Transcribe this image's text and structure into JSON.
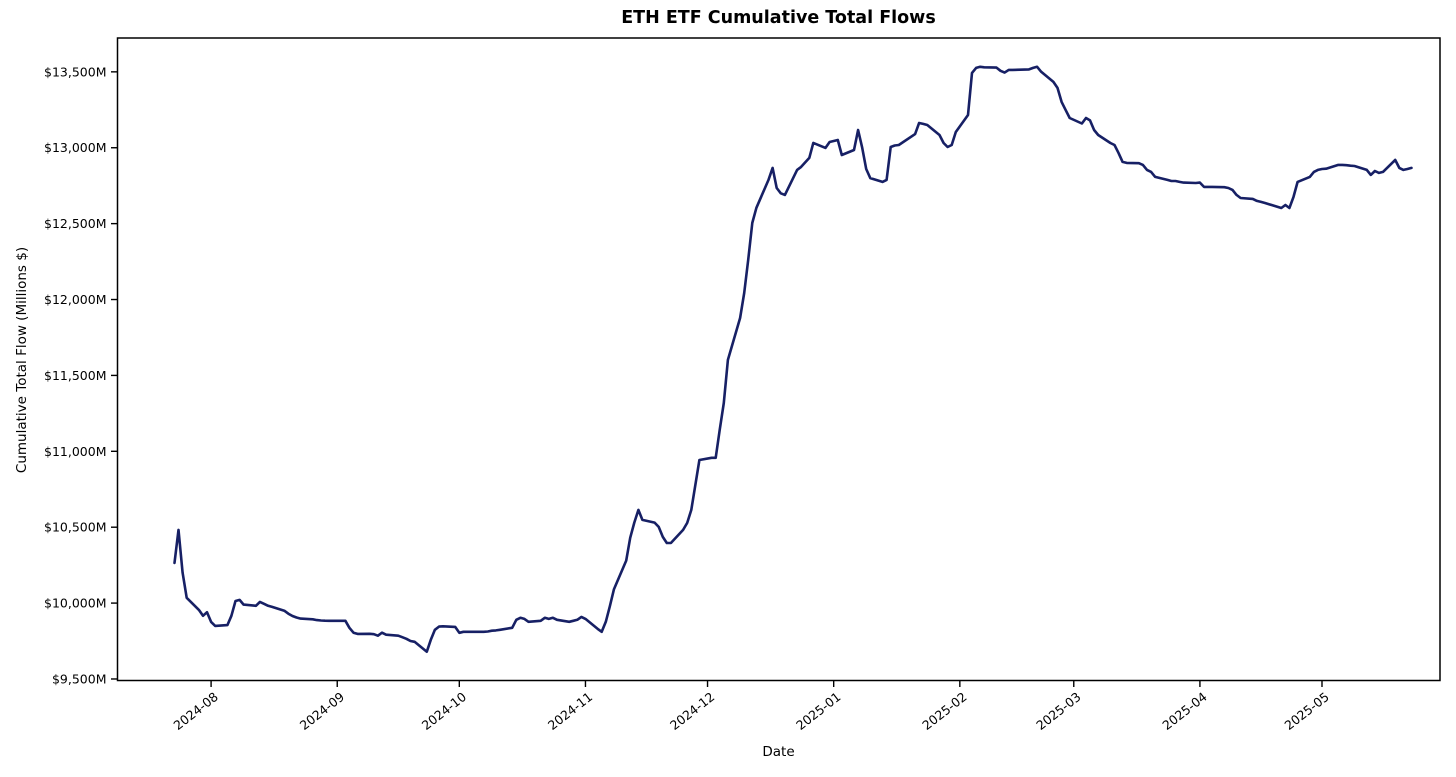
{
  "chart_data": {
    "type": "line",
    "title": "ETH ETF Cumulative Total Flows",
    "xlabel": "Date",
    "ylabel": "Cumulative Total Flow (Millions $)",
    "line_color": "#172065",
    "axis_color": "#000000",
    "background": "#ffffff",
    "grid": false,
    "legend_position": "none",
    "xlim": [
      "2024-07-09",
      "2025-05-30"
    ],
    "ylim": [
      9490,
      13723
    ],
    "x_ticks": [
      {
        "label": "2024-08",
        "date": "2024-08-01"
      },
      {
        "label": "2024-09",
        "date": "2024-09-01"
      },
      {
        "label": "2024-10",
        "date": "2024-10-01"
      },
      {
        "label": "2024-11",
        "date": "2024-11-01"
      },
      {
        "label": "2024-12",
        "date": "2024-12-01"
      },
      {
        "label": "2025-01",
        "date": "2025-01-01"
      },
      {
        "label": "2025-02",
        "date": "2025-02-01"
      },
      {
        "label": "2025-03",
        "date": "2025-03-01"
      },
      {
        "label": "2025-04",
        "date": "2025-04-01"
      },
      {
        "label": "2025-05",
        "date": "2025-05-01"
      }
    ],
    "y_ticks": [
      {
        "label": "$9,500M",
        "value": 9500
      },
      {
        "label": "$10,000M",
        "value": 10000
      },
      {
        "label": "$10,500M",
        "value": 10500
      },
      {
        "label": "$11,000M",
        "value": 11000
      },
      {
        "label": "$11,500M",
        "value": 11500
      },
      {
        "label": "$12,000M",
        "value": 12000
      },
      {
        "label": "$12,500M",
        "value": 12500
      },
      {
        "label": "$13,000M",
        "value": 13000
      },
      {
        "label": "$13,500M",
        "value": 13500
      }
    ],
    "series": [
      {
        "points": [
          [
            "2024-07-23",
            10265
          ],
          [
            "2024-07-24",
            10482
          ],
          [
            "2024-07-25",
            10200
          ],
          [
            "2024-07-26",
            10035
          ],
          [
            "2024-07-29",
            9955
          ],
          [
            "2024-07-30",
            9916
          ],
          [
            "2024-07-31",
            9940
          ],
          [
            "2024-08-01",
            9876
          ],
          [
            "2024-08-02",
            9850
          ],
          [
            "2024-08-05",
            9855
          ],
          [
            "2024-08-06",
            9916
          ],
          [
            "2024-08-07",
            10014
          ],
          [
            "2024-08-08",
            10021
          ],
          [
            "2024-08-09",
            9990
          ],
          [
            "2024-08-12",
            9982
          ],
          [
            "2024-08-13",
            10008
          ],
          [
            "2024-08-14",
            9995
          ],
          [
            "2024-08-15",
            9982
          ],
          [
            "2024-08-16",
            9975
          ],
          [
            "2024-08-19",
            9950
          ],
          [
            "2024-08-20",
            9930
          ],
          [
            "2024-08-21",
            9915
          ],
          [
            "2024-08-22",
            9905
          ],
          [
            "2024-08-23",
            9898
          ],
          [
            "2024-08-26",
            9893
          ],
          [
            "2024-08-27",
            9888
          ],
          [
            "2024-08-28",
            9885
          ],
          [
            "2024-08-29",
            9884
          ],
          [
            "2024-08-30",
            9883
          ],
          [
            "2024-09-03",
            9883
          ],
          [
            "2024-09-04",
            9837
          ],
          [
            "2024-09-05",
            9805
          ],
          [
            "2024-09-06",
            9797
          ],
          [
            "2024-09-09",
            9798
          ],
          [
            "2024-09-10",
            9795
          ],
          [
            "2024-09-11",
            9785
          ],
          [
            "2024-09-12",
            9805
          ],
          [
            "2024-09-13",
            9792
          ],
          [
            "2024-09-16",
            9785
          ],
          [
            "2024-09-17",
            9775
          ],
          [
            "2024-09-18",
            9765
          ],
          [
            "2024-09-19",
            9750
          ],
          [
            "2024-09-20",
            9745
          ],
          [
            "2024-09-23",
            9680
          ],
          [
            "2024-09-24",
            9758
          ],
          [
            "2024-09-25",
            9824
          ],
          [
            "2024-09-26",
            9845
          ],
          [
            "2024-09-27",
            9847
          ],
          [
            "2024-09-30",
            9843
          ],
          [
            "2024-10-01",
            9804
          ],
          [
            "2024-10-02",
            9811
          ],
          [
            "2024-10-03",
            9811
          ],
          [
            "2024-10-04",
            9811
          ],
          [
            "2024-10-07",
            9811
          ],
          [
            "2024-10-08",
            9813
          ],
          [
            "2024-10-09",
            9818
          ],
          [
            "2024-10-10",
            9820
          ],
          [
            "2024-10-11",
            9824
          ],
          [
            "2024-10-14",
            9837
          ],
          [
            "2024-10-15",
            9890
          ],
          [
            "2024-10-16",
            9903
          ],
          [
            "2024-10-17",
            9896
          ],
          [
            "2024-10-18",
            9877
          ],
          [
            "2024-10-21",
            9883
          ],
          [
            "2024-10-22",
            9903
          ],
          [
            "2024-10-23",
            9896
          ],
          [
            "2024-10-24",
            9903
          ],
          [
            "2024-10-25",
            9890
          ],
          [
            "2024-10-28",
            9877
          ],
          [
            "2024-10-29",
            9883
          ],
          [
            "2024-10-30",
            9890
          ],
          [
            "2024-10-31",
            9909
          ],
          [
            "2024-11-01",
            9896
          ],
          [
            "2024-11-04",
            9830
          ],
          [
            "2024-11-05",
            9811
          ],
          [
            "2024-11-06",
            9877
          ],
          [
            "2024-11-07",
            9980
          ],
          [
            "2024-11-08",
            10090
          ],
          [
            "2024-11-11",
            10280
          ],
          [
            "2024-11-12",
            10430
          ],
          [
            "2024-11-13",
            10530
          ],
          [
            "2024-11-14",
            10614
          ],
          [
            "2024-11-15",
            10548
          ],
          [
            "2024-11-18",
            10530
          ],
          [
            "2024-11-19",
            10502
          ],
          [
            "2024-11-20",
            10436
          ],
          [
            "2024-11-21",
            10396
          ],
          [
            "2024-11-22",
            10396
          ],
          [
            "2024-11-25",
            10482
          ],
          [
            "2024-11-26",
            10528
          ],
          [
            "2024-11-27",
            10614
          ],
          [
            "2024-11-29",
            10943
          ],
          [
            "2024-12-02",
            10957
          ],
          [
            "2024-12-03",
            10957
          ],
          [
            "2024-12-04",
            11141
          ],
          [
            "2024-12-05",
            11318
          ],
          [
            "2024-12-06",
            11602
          ],
          [
            "2024-12-09",
            11878
          ],
          [
            "2024-12-10",
            12043
          ],
          [
            "2024-12-11",
            12261
          ],
          [
            "2024-12-12",
            12505
          ],
          [
            "2024-12-13",
            12604
          ],
          [
            "2024-12-16",
            12790
          ],
          [
            "2024-12-17",
            12867
          ],
          [
            "2024-12-18",
            12735
          ],
          [
            "2024-12-19",
            12700
          ],
          [
            "2024-12-20",
            12689
          ],
          [
            "2024-12-23",
            12854
          ],
          [
            "2024-12-24",
            12874
          ],
          [
            "2024-12-26",
            12933
          ],
          [
            "2024-12-27",
            13032
          ],
          [
            "2024-12-30",
            12999
          ],
          [
            "2024-12-31",
            13038
          ],
          [
            "2025-01-02",
            13051
          ],
          [
            "2025-01-03",
            12952
          ],
          [
            "2025-01-06",
            12985
          ],
          [
            "2025-01-07",
            13117
          ],
          [
            "2025-01-08",
            13000
          ],
          [
            "2025-01-09",
            12860
          ],
          [
            "2025-01-10",
            12800
          ],
          [
            "2025-01-13",
            12775
          ],
          [
            "2025-01-14",
            12788
          ],
          [
            "2025-01-15",
            13005
          ],
          [
            "2025-01-16",
            13015
          ],
          [
            "2025-01-17",
            13018
          ],
          [
            "2025-01-21",
            13090
          ],
          [
            "2025-01-22",
            13163
          ],
          [
            "2025-01-23",
            13157
          ],
          [
            "2025-01-24",
            13150
          ],
          [
            "2025-01-27",
            13084
          ],
          [
            "2025-01-28",
            13031
          ],
          [
            "2025-01-29",
            13005
          ],
          [
            "2025-01-30",
            13018
          ],
          [
            "2025-01-31",
            13104
          ],
          [
            "2025-02-03",
            13216
          ],
          [
            "2025-02-04",
            13493
          ],
          [
            "2025-02-05",
            13526
          ],
          [
            "2025-02-06",
            13533
          ],
          [
            "2025-02-07",
            13530
          ],
          [
            "2025-02-10",
            13528
          ],
          [
            "2025-02-11",
            13507
          ],
          [
            "2025-02-12",
            13495
          ],
          [
            "2025-02-13",
            13513
          ],
          [
            "2025-02-14",
            13513
          ],
          [
            "2025-02-18",
            13516
          ],
          [
            "2025-02-19",
            13526
          ],
          [
            "2025-02-20",
            13533
          ],
          [
            "2025-02-21",
            13500
          ],
          [
            "2025-02-24",
            13434
          ],
          [
            "2025-02-25",
            13394
          ],
          [
            "2025-02-26",
            13302
          ],
          [
            "2025-02-27",
            13249
          ],
          [
            "2025-02-28",
            13196
          ],
          [
            "2025-03-03",
            13160
          ],
          [
            "2025-03-04",
            13196
          ],
          [
            "2025-03-05",
            13180
          ],
          [
            "2025-03-06",
            13117
          ],
          [
            "2025-03-07",
            13084
          ],
          [
            "2025-03-10",
            13031
          ],
          [
            "2025-03-11",
            13018
          ],
          [
            "2025-03-12",
            12966
          ],
          [
            "2025-03-13",
            12907
          ],
          [
            "2025-03-14",
            12900
          ],
          [
            "2025-03-17",
            12898
          ],
          [
            "2025-03-18",
            12887
          ],
          [
            "2025-03-19",
            12854
          ],
          [
            "2025-03-20",
            12841
          ],
          [
            "2025-03-21",
            12808
          ],
          [
            "2025-03-24",
            12788
          ],
          [
            "2025-03-25",
            12781
          ],
          [
            "2025-03-26",
            12781
          ],
          [
            "2025-03-27",
            12775
          ],
          [
            "2025-03-28",
            12770
          ],
          [
            "2025-03-31",
            12768
          ],
          [
            "2025-04-01",
            12770
          ],
          [
            "2025-04-02",
            12742
          ],
          [
            "2025-04-03",
            12742
          ],
          [
            "2025-04-04",
            12742
          ],
          [
            "2025-04-07",
            12740
          ],
          [
            "2025-04-08",
            12735
          ],
          [
            "2025-04-09",
            12722
          ],
          [
            "2025-04-10",
            12689
          ],
          [
            "2025-04-11",
            12669
          ],
          [
            "2025-04-14",
            12663
          ],
          [
            "2025-04-15",
            12650
          ],
          [
            "2025-04-16",
            12643
          ],
          [
            "2025-04-17",
            12636
          ],
          [
            "2025-04-21",
            12603
          ],
          [
            "2025-04-22",
            12623
          ],
          [
            "2025-04-23",
            12603
          ],
          [
            "2025-04-24",
            12676
          ],
          [
            "2025-04-25",
            12775
          ],
          [
            "2025-04-28",
            12808
          ],
          [
            "2025-04-29",
            12841
          ],
          [
            "2025-04-30",
            12854
          ],
          [
            "2025-05-01",
            12860
          ],
          [
            "2025-05-02",
            12862
          ],
          [
            "2025-05-05",
            12887
          ],
          [
            "2025-05-06",
            12887
          ],
          [
            "2025-05-07",
            12885
          ],
          [
            "2025-05-08",
            12882
          ],
          [
            "2025-05-09",
            12880
          ],
          [
            "2025-05-12",
            12854
          ],
          [
            "2025-05-13",
            12821
          ],
          [
            "2025-05-14",
            12847
          ],
          [
            "2025-05-15",
            12834
          ],
          [
            "2025-05-16",
            12841
          ],
          [
            "2025-05-19",
            12920
          ],
          [
            "2025-05-20",
            12867
          ],
          [
            "2025-05-21",
            12854
          ],
          [
            "2025-05-22",
            12860
          ],
          [
            "2025-05-23",
            12867
          ]
        ]
      }
    ]
  }
}
